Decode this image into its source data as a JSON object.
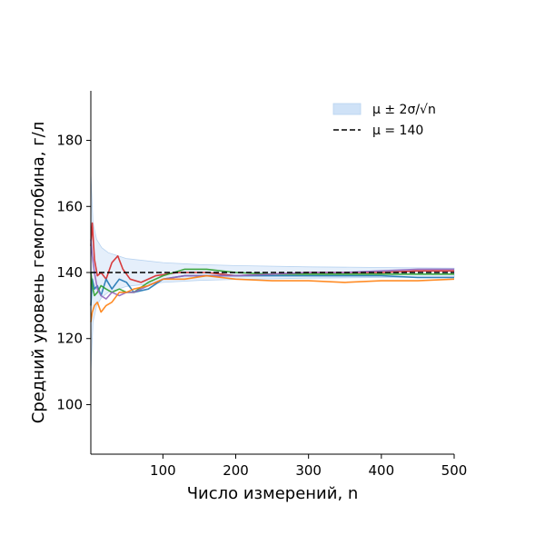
{
  "chart_data": {
    "type": "line",
    "title": "",
    "xlabel": "Число измерений, n",
    "ylabel": "Средний уровень гемоглобина, г/л",
    "xlim": [
      1,
      500
    ],
    "ylim": [
      85,
      195
    ],
    "xticks": [
      100,
      200,
      300,
      400,
      500
    ],
    "yticks": [
      100,
      120,
      140,
      160,
      180
    ],
    "grid": false,
    "legend_position": "top-right",
    "band": {
      "label": "μ ± 2σ/√n",
      "color": "#cfe2f7",
      "points": [
        {
          "n": 1,
          "lower": 110,
          "upper": 170
        },
        {
          "n": 4,
          "lower": 125,
          "upper": 155
        },
        {
          "n": 9,
          "lower": 130,
          "upper": 150
        },
        {
          "n": 16,
          "lower": 132.5,
          "upper": 147.5
        },
        {
          "n": 25,
          "lower": 134,
          "upper": 146
        },
        {
          "n": 50,
          "lower": 135.8,
          "upper": 144.2
        },
        {
          "n": 100,
          "lower": 137,
          "upper": 143
        },
        {
          "n": 150,
          "lower": 137.6,
          "upper": 142.4
        },
        {
          "n": 200,
          "lower": 137.9,
          "upper": 142.1
        },
        {
          "n": 300,
          "lower": 138.3,
          "upper": 141.7
        },
        {
          "n": 400,
          "lower": 138.5,
          "upper": 141.5
        },
        {
          "n": 500,
          "lower": 138.7,
          "upper": 141.3
        }
      ]
    },
    "reference_line": {
      "label": "μ = 140",
      "value": 140,
      "color": "#000000",
      "style": "dashed"
    },
    "series": [
      {
        "color": "#d62728",
        "x": [
          1,
          3,
          6,
          10,
          15,
          22,
          30,
          38,
          45,
          55,
          70,
          90,
          120,
          160,
          200,
          250,
          300,
          350,
          400,
          450,
          500
        ],
        "y": [
          148,
          155,
          144,
          139,
          140,
          138,
          143,
          145,
          141,
          138,
          137,
          139,
          140,
          140,
          139,
          139.5,
          140,
          140,
          140,
          140.5,
          140.5
        ]
      },
      {
        "color": "#1f77b4",
        "x": [
          1,
          3,
          6,
          10,
          15,
          22,
          30,
          40,
          50,
          60,
          80,
          100,
          130,
          160,
          200,
          250,
          300,
          350,
          400,
          450,
          500
        ],
        "y": [
          130,
          138,
          135,
          136,
          133,
          138,
          135,
          138,
          137,
          134,
          135,
          138,
          139,
          139,
          139,
          139,
          139,
          139,
          139,
          138.5,
          138.5
        ]
      },
      {
        "color": "#2ca02c",
        "x": [
          1,
          3,
          6,
          10,
          15,
          22,
          30,
          40,
          50,
          60,
          80,
          100,
          130,
          160,
          200,
          250,
          300,
          350,
          400,
          450,
          500
        ],
        "y": [
          140,
          136,
          133,
          134,
          136,
          135,
          134,
          135,
          134,
          134,
          137,
          139,
          141,
          141,
          140,
          139.5,
          139.5,
          139.5,
          139.5,
          139.5,
          139.5
        ]
      },
      {
        "color": "#9467bd",
        "x": [
          1,
          3,
          6,
          10,
          15,
          22,
          30,
          40,
          50,
          60,
          80,
          100,
          130,
          160,
          200,
          250,
          300,
          350,
          400,
          450,
          500
        ],
        "y": [
          150,
          145,
          140,
          135,
          133,
          132,
          134,
          133,
          134,
          134,
          136,
          138,
          139,
          139,
          139,
          139.5,
          140,
          140,
          140.5,
          141,
          141
        ]
      },
      {
        "color": "#ff7f0e",
        "x": [
          1,
          3,
          6,
          10,
          15,
          22,
          30,
          40,
          50,
          60,
          80,
          100,
          130,
          160,
          200,
          250,
          300,
          350,
          400,
          450,
          500
        ],
        "y": [
          125,
          128,
          130,
          131,
          128,
          130,
          131,
          134,
          134,
          135,
          136,
          138,
          138,
          139,
          138,
          137.5,
          137.5,
          137,
          137.5,
          137.5,
          138
        ]
      }
    ]
  }
}
